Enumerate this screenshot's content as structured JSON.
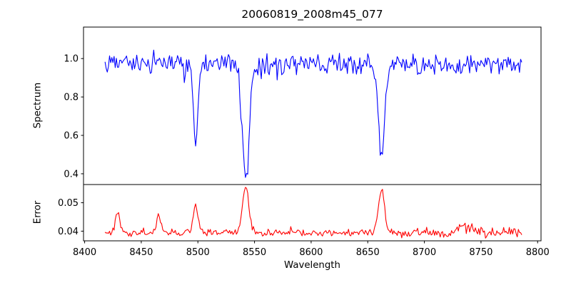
{
  "figure": {
    "title": "20060819_2008m45_077",
    "background": "#ffffff",
    "text_color": "#000000",
    "frame_color": "#000000"
  },
  "axes": {
    "x": {
      "label": "Wavelength",
      "lim": [
        8399,
        8803
      ],
      "ticks": [
        {
          "v": 8400,
          "label": "8400"
        },
        {
          "v": 8450,
          "label": "8450"
        },
        {
          "v": 8500,
          "label": "8500"
        },
        {
          "v": 8550,
          "label": "8550"
        },
        {
          "v": 8600,
          "label": "8600"
        },
        {
          "v": 8650,
          "label": "8650"
        },
        {
          "v": 8700,
          "label": "8700"
        },
        {
          "v": 8750,
          "label": "8750"
        },
        {
          "v": 8800,
          "label": "8800"
        }
      ]
    },
    "spectrum": {
      "label": "Spectrum",
      "lim": [
        0.344,
        1.164
      ],
      "ticks": [
        {
          "v": 1.0,
          "label": "1.0"
        },
        {
          "v": 0.8,
          "label": "0.8"
        },
        {
          "v": 0.6,
          "label": "0.6"
        },
        {
          "v": 0.4,
          "label": "0.4"
        }
      ]
    },
    "error": {
      "label": "Error",
      "lim": [
        0.0366,
        0.0564
      ],
      "ticks": [
        {
          "v": 0.05,
          "label": "0.05"
        },
        {
          "v": 0.04,
          "label": "0.04"
        }
      ]
    }
  },
  "chart_data": [
    {
      "name": "spectrum",
      "type": "line",
      "title": "20060819_2008m45_077",
      "xlabel": "Wavelength",
      "ylabel": "Spectrum",
      "color": "#0000ff",
      "grid": false,
      "legend": null,
      "x_range": [
        8418,
        8786
      ],
      "x_step": 1,
      "xlim": [
        8399,
        8803
      ],
      "ylim": [
        0.344,
        1.164
      ],
      "baseline": 0.972,
      "noise": {
        "seed": 81907,
        "amp": 0.06,
        "spike_prob": 0.1,
        "spike_mult": 1.9
      },
      "features": [
        {
          "center": 8498.0,
          "amp": -0.385,
          "sigma": 2.1
        },
        {
          "center": 8542.1,
          "amp": -0.592,
          "sigma": 3.1
        },
        {
          "center": 8662.1,
          "amp": -0.482,
          "sigma": 2.7
        }
      ],
      "clip": [
        0.381,
        1.127
      ],
      "notable_points": [
        {
          "x": 8498,
          "y": 0.59,
          "note": "absorption line minimum"
        },
        {
          "x": 8542,
          "y": 0.38,
          "note": "deepest absorption line minimum"
        },
        {
          "x": 8662,
          "y": 0.49,
          "note": "absorption line minimum"
        }
      ]
    },
    {
      "name": "error",
      "type": "line",
      "xlabel": "Wavelength",
      "ylabel": "Error",
      "color": "#ff0000",
      "grid": false,
      "legend": null,
      "x_range": [
        8418,
        8786
      ],
      "x_step": 1,
      "xlim": [
        8399,
        8803
      ],
      "ylim": [
        0.0366,
        0.0564
      ],
      "baseline": 0.0394,
      "noise": {
        "seed": 45077,
        "amp": 0.0015,
        "spike_prob": 0.05,
        "spike_mult": 1.8,
        "boost": {
          "from": 8680,
          "mult": 1.6
        }
      },
      "features": [
        {
          "center": 8429.0,
          "amp": 0.0076,
          "sigma": 1.8
        },
        {
          "center": 8465.5,
          "amp": 0.0066,
          "sigma": 1.8
        },
        {
          "center": 8498.0,
          "amp": 0.0092,
          "sigma": 2.2
        },
        {
          "center": 8542.1,
          "amp": 0.0158,
          "sigma": 2.8
        },
        {
          "center": 8662.1,
          "amp": 0.015,
          "sigma": 2.6
        },
        {
          "center": 8736.0,
          "amp": 0.0022,
          "sigma": 5.0
        }
      ],
      "clip": [
        0.0375,
        0.0556
      ],
      "notable_points": [
        {
          "x": 8429,
          "y": 0.047,
          "note": "error peak"
        },
        {
          "x": 8466,
          "y": 0.047,
          "note": "error peak"
        },
        {
          "x": 8498,
          "y": 0.049,
          "note": "error peak"
        },
        {
          "x": 8542,
          "y": 0.0555,
          "note": "largest error peak"
        },
        {
          "x": 8662,
          "y": 0.055,
          "note": "error peak"
        }
      ]
    }
  ]
}
